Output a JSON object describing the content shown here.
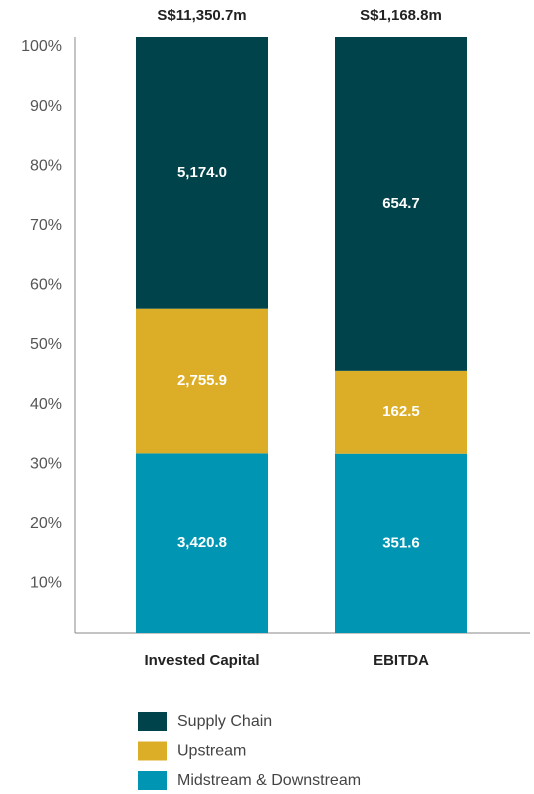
{
  "chart_data": {
    "type": "bar",
    "stacking": "percent",
    "categories": [
      "Invested Capital",
      "EBITDA"
    ],
    "total_labels": [
      "S$11,350.7m",
      "S$1,168.8m"
    ],
    "series": [
      {
        "name": "Supply Chain",
        "color": "#00434b",
        "values": [
          5174.0,
          654.7
        ],
        "value_labels": [
          "5,174.0",
          "654.7"
        ]
      },
      {
        "name": "Upstream",
        "color": "#dcae28",
        "values": [
          2755.9,
          162.5
        ],
        "value_labels": [
          "2,755.9",
          "162.5"
        ]
      },
      {
        "name": "Midstream & Downstream",
        "color": "#0096b3",
        "values": [
          3420.8,
          351.6
        ],
        "value_labels": [
          "3,420.8",
          "351.6"
        ]
      }
    ],
    "ylim": [
      0,
      100
    ],
    "yticks": [
      {
        "value": 10,
        "label": "10%"
      },
      {
        "value": 20,
        "label": "20%"
      },
      {
        "value": 30,
        "label": "30%"
      },
      {
        "value": 40,
        "label": "40%"
      },
      {
        "value": 50,
        "label": "50%"
      },
      {
        "value": 60,
        "label": "60%"
      },
      {
        "value": 70,
        "label": "70%"
      },
      {
        "value": 80,
        "label": "80%"
      },
      {
        "value": 90,
        "label": "90%"
      },
      {
        "value": 100,
        "label": "100%"
      }
    ],
    "legend": "bottom"
  }
}
